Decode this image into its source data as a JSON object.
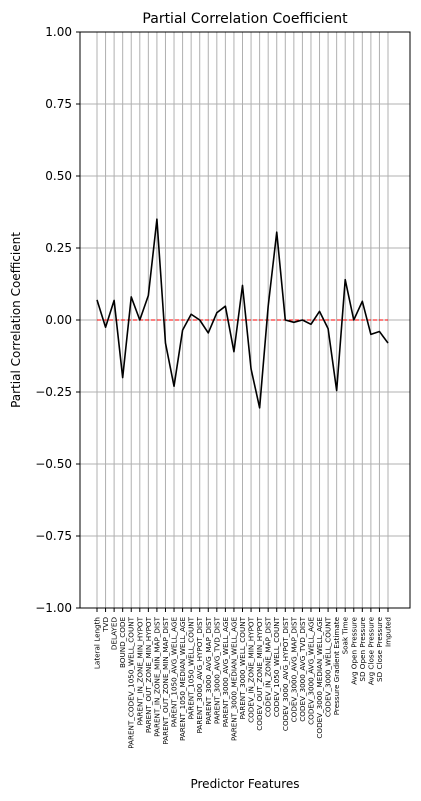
{
  "chart_data": {
    "type": "line",
    "title": "Partial Correlation Coefficient",
    "xlabel": "Predictor Features",
    "ylabel": "Partial Correlation Coefficient",
    "ylim": [
      -1.0,
      1.0
    ],
    "yticks": [
      -1.0,
      -0.75,
      -0.5,
      -0.25,
      0.0,
      0.25,
      0.5,
      0.75,
      1.0
    ],
    "ytick_labels": [
      "−1.00",
      "−0.75",
      "−0.50",
      "−0.25",
      "0.00",
      "0.25",
      "0.50",
      "0.75",
      "1.00"
    ],
    "grid": true,
    "categories": [
      "Lateral Length",
      "TVD",
      "DELAYED",
      "BOUND_CODE",
      "PARENT_CODEV_1050_WELL_COUNT",
      "PARENT_IN_ZONE_MIN_HYPOT",
      "PARENT_OUT_ZONE_MIN_HYPOT",
      "PARENT_IN_ZONE_MIN_MAP_DIST",
      "PARENT_OUT_ZONE_MIN_MAP_DIST",
      "PARENT_1050_AVG_WELL_AGE",
      "PARENT_1050_MEDIAN_WELL_AGE",
      "PARENT_1050_WELL_COUNT",
      "PARENT_3000_AVG_HYPOT_DIST",
      "PARENT_3000_AVG_MAP_DIST",
      "PARENT_3000_AVG_TVD_DIST",
      "PARENT_3000_AVG_WELL_AGE",
      "PARENT_3000_MEDIAN_WELL_AGE",
      "PARENT_3000_WELL_COUNT",
      "CODEV_IN_ZONE_MIN_HYPOT",
      "CODEV_OUT_ZONE_MIN_HYPOT",
      "CODEV_IN_ZONE_MAP_DIST",
      "CODEV_1050_WELL_COUNT",
      "CODEV_3000_AVG_HYPOT_DIST",
      "CODEV_3000_AVG_MAP_DIST",
      "CODEV_3000_AVG_TVD_DIST",
      "CODEV_3000_AVG_WELL_AGE",
      "CODEV_3000_MEDIAN_WELL_AGE",
      "CODEV_3000_WELL_COUNT",
      "Pressure Gradient Estimate",
      "Soak Time",
      "Avg Open Pressure",
      "SD Open Pressure",
      "Avg Close Pressure",
      "SD Close Pressure",
      "Imputed"
    ],
    "series": [
      {
        "color": "#000000",
        "values": [
          0.07,
          -0.025,
          0.068,
          -0.2,
          0.08,
          0.0,
          0.085,
          0.35,
          -0.08,
          -0.23,
          -0.035,
          0.02,
          0.0,
          -0.045,
          0.025,
          0.048,
          -0.11,
          0.12,
          -0.17,
          -0.305,
          0.048,
          0.305,
          0.0,
          -0.008,
          0.0,
          -0.015,
          0.03,
          -0.03,
          -0.245,
          0.14,
          0.0,
          0.065,
          -0.05,
          -0.04,
          -0.08
        ]
      }
    ],
    "reference_line": {
      "y": 0.0,
      "color": "#ff0000",
      "style": "dashed"
    }
  }
}
